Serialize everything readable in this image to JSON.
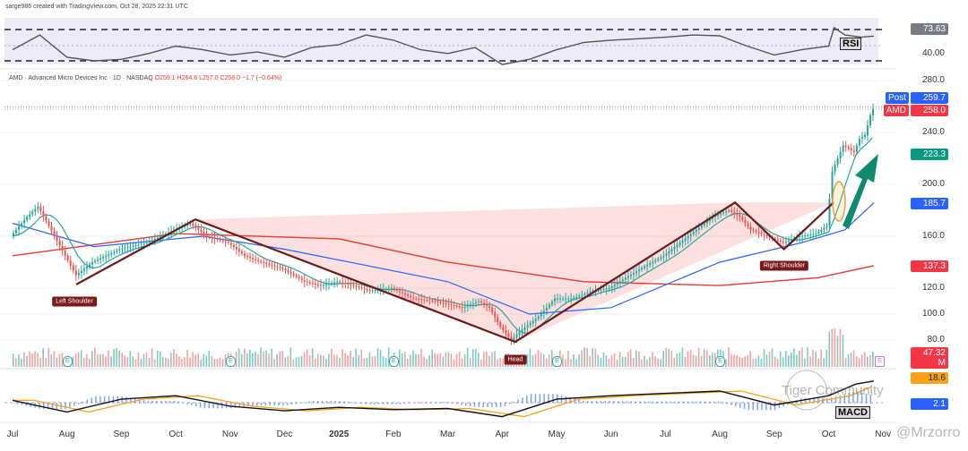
{
  "header": {
    "credit": "sarge986 created with TradingView.com, Oct 28, 2025 22:31 UTC",
    "symbol": "AMD · Advanced Micro Devices Inc · 1D · NASDAQ",
    "o": "O259.1",
    "h": "H264.6",
    "l": "L257.0",
    "c": "C258.0",
    "chg": "−1.7 (−0.64%)"
  },
  "labels": {
    "post": "Post",
    "post_val": "259.7",
    "amd": "AMD",
    "amd_val": "258.0",
    "ema": "223.3",
    "ma50": "185.7",
    "ma200": "137.3",
    "volume": "47.32 M",
    "macd1": "18.6",
    "macd2": "2.1",
    "rsi_val": "73.63",
    "rsi_axis": "40.00",
    "rsi": "RSI",
    "macd": "MACD",
    "left_shoulder": "Left Shoulder",
    "head": "Head",
    "right_shoulder": "Right Shoulder",
    "earnings": "E"
  },
  "watermarks": {
    "community": "Tiger Community",
    "author": "@Mrzorro"
  },
  "colors": {
    "up": "#26a69a",
    "down": "#ef5350",
    "ema": "#26a69a",
    "ma50": "#2962ff",
    "ma200": "#e53935",
    "pattern": "#6b1a1a",
    "arrow": "#0f8a6e"
  },
  "chart_data": {
    "type": "line",
    "title": "AMD · Advanced Micro Devices Inc · 1D · NASDAQ",
    "x_ticks": [
      "Jul",
      "Aug",
      "Sep",
      "Oct",
      "Nov",
      "Dec",
      "2025",
      "Feb",
      "Mar",
      "Apr",
      "May",
      "Jun",
      "Jul",
      "Aug",
      "Sep",
      "Oct",
      "Nov"
    ],
    "y_ticks": [
      280,
      240,
      200,
      160,
      120,
      100,
      80
    ],
    "ylim": [
      75,
      285
    ],
    "price": [
      [
        0,
        160
      ],
      [
        0.3,
        175
      ],
      [
        0.5,
        183
      ],
      [
        0.7,
        168
      ],
      [
        1,
        145
      ],
      [
        1.2,
        130
      ],
      [
        1.5,
        140
      ],
      [
        2,
        150
      ],
      [
        2.5,
        155
      ],
      [
        3,
        165
      ],
      [
        3.3,
        170
      ],
      [
        3.6,
        160
      ],
      [
        4,
        155
      ],
      [
        4.3,
        145
      ],
      [
        4.6,
        140
      ],
      [
        5,
        135
      ],
      [
        5.4,
        125
      ],
      [
        5.7,
        122
      ],
      [
        6,
        125
      ],
      [
        6.3,
        122
      ],
      [
        6.6,
        118
      ],
      [
        7,
        120
      ],
      [
        7.4,
        112
      ],
      [
        7.8,
        110
      ],
      [
        8,
        108
      ],
      [
        8.3,
        105
      ],
      [
        8.6,
        110
      ],
      [
        8.8,
        105
      ],
      [
        9,
        90
      ],
      [
        9.2,
        80
      ],
      [
        9.4,
        88
      ],
      [
        9.7,
        98
      ],
      [
        10,
        112
      ],
      [
        10.3,
        112
      ],
      [
        10.7,
        118
      ],
      [
        11,
        120
      ],
      [
        11.3,
        128
      ],
      [
        11.7,
        138
      ],
      [
        12,
        145
      ],
      [
        12.3,
        155
      ],
      [
        12.6,
        165
      ],
      [
        12.9,
        175
      ],
      [
        13.2,
        180
      ],
      [
        13.4,
        175
      ],
      [
        13.6,
        165
      ],
      [
        13.9,
        160
      ],
      [
        14.2,
        155
      ],
      [
        14.5,
        160
      ],
      [
        14.8,
        162
      ],
      [
        15,
        168
      ],
      [
        15.1,
        210
      ],
      [
        15.3,
        230
      ],
      [
        15.5,
        225
      ],
      [
        15.6,
        235
      ],
      [
        15.7,
        238
      ],
      [
        15.78,
        250
      ],
      [
        15.83,
        258
      ]
    ],
    "ma50": [
      [
        0,
        170
      ],
      [
        1.5,
        152
      ],
      [
        3.5,
        160
      ],
      [
        5,
        150
      ],
      [
        8,
        125
      ],
      [
        9.5,
        100
      ],
      [
        11,
        105
      ],
      [
        13,
        140
      ],
      [
        14.5,
        155
      ],
      [
        15.3,
        165
      ],
      [
        15.83,
        185.7
      ]
    ],
    "ma200": [
      [
        0,
        145
      ],
      [
        3,
        162
      ],
      [
        6,
        158
      ],
      [
        8,
        140
      ],
      [
        10.5,
        125
      ],
      [
        13,
        122
      ],
      [
        14.8,
        128
      ],
      [
        15.83,
        137.3
      ]
    ],
    "pattern": [
      [
        1.17,
        122.8
      ],
      [
        3.36,
        173
      ],
      [
        9.24,
        78.6
      ],
      [
        13.28,
        186
      ],
      [
        14.18,
        150
      ],
      [
        15.09,
        186
      ]
    ],
    "rsi": [
      [
        0,
        55
      ],
      [
        0.5,
        75
      ],
      [
        1,
        45
      ],
      [
        1.5,
        40
      ],
      [
        2,
        42
      ],
      [
        2.5,
        50
      ],
      [
        3,
        60
      ],
      [
        3.5,
        55
      ],
      [
        4,
        48
      ],
      [
        4.5,
        52
      ],
      [
        5,
        45
      ],
      [
        5.5,
        58
      ],
      [
        6,
        62
      ],
      [
        6.5,
        75
      ],
      [
        7,
        68
      ],
      [
        7.5,
        55
      ],
      [
        8,
        50
      ],
      [
        8.5,
        58
      ],
      [
        9,
        35
      ],
      [
        9.5,
        42
      ],
      [
        10,
        55
      ],
      [
        10.5,
        65
      ],
      [
        11,
        68
      ],
      [
        11.5,
        70
      ],
      [
        12,
        72
      ],
      [
        12.5,
        75
      ],
      [
        13,
        74
      ],
      [
        13.5,
        60
      ],
      [
        14,
        48
      ],
      [
        14.5,
        55
      ],
      [
        15,
        60
      ],
      [
        15.1,
        85
      ],
      [
        15.3,
        75
      ],
      [
        15.6,
        72
      ],
      [
        15.83,
        73.63
      ]
    ],
    "macd": [
      [
        0,
        2
      ],
      [
        1,
        -8
      ],
      [
        2,
        3
      ],
      [
        3,
        6
      ],
      [
        4,
        -3
      ],
      [
        5,
        -7
      ],
      [
        6,
        -4
      ],
      [
        7,
        -6
      ],
      [
        8,
        -5
      ],
      [
        9,
        -12
      ],
      [
        10,
        3
      ],
      [
        11,
        6
      ],
      [
        12,
        8
      ],
      [
        13,
        10
      ],
      [
        14,
        -2
      ],
      [
        15,
        6
      ],
      [
        15.5,
        16
      ],
      [
        15.83,
        18.6
      ]
    ]
  }
}
